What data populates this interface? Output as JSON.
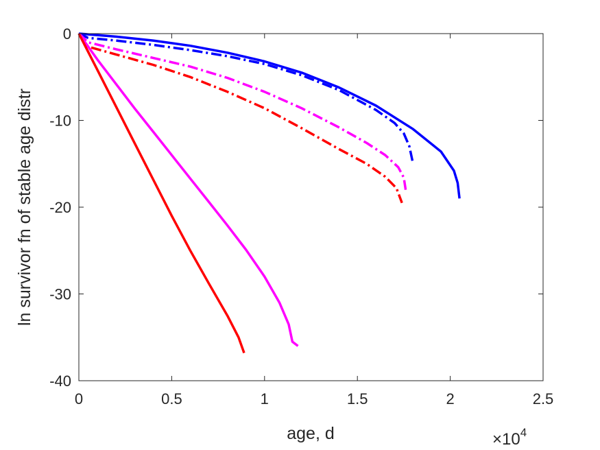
{
  "chart_data": {
    "type": "line",
    "title": "",
    "xlabel": "age, d",
    "ylabel": "ln survivor fn of stable age distr",
    "x_exponent_label": {
      "base": "×10",
      "exponent": "4"
    },
    "xlim": [
      0,
      25000
    ],
    "ylim": [
      -40,
      0
    ],
    "xticks": [
      0,
      5000,
      10000,
      15000,
      20000,
      25000
    ],
    "xtick_labels": [
      "0",
      "0.5",
      "1",
      "1.5",
      "2",
      "2.5"
    ],
    "yticks": [
      0,
      -10,
      -20,
      -30,
      -40
    ],
    "ytick_labels": [
      "0",
      "-10",
      "-20",
      "-30",
      "-40"
    ],
    "grid": false,
    "legend": "none",
    "series": [
      {
        "color": "#0000ff",
        "style": "solid",
        "x": [
          0,
          2000,
          4000,
          6000,
          8000,
          10000,
          12000,
          14000,
          16000,
          18000,
          19500,
          20200,
          20400,
          20500
        ],
        "y": [
          0,
          -0.35,
          -0.8,
          -1.4,
          -2.2,
          -3.2,
          -4.5,
          -6.2,
          -8.3,
          -11.0,
          -13.6,
          -15.8,
          -17.2,
          -19.0
        ]
      },
      {
        "color": "#0000ff",
        "style": "dashdot",
        "x": [
          0,
          500,
          2000,
          4000,
          6000,
          8000,
          10000,
          12000,
          14000,
          16000,
          17000,
          17500,
          17800,
          18000
        ],
        "y": [
          0,
          -0.5,
          -0.8,
          -1.3,
          -1.9,
          -2.6,
          -3.5,
          -4.8,
          -6.5,
          -8.8,
          -10.3,
          -11.5,
          -13.0,
          -15.0
        ]
      },
      {
        "color": "#ff00ff",
        "style": "dashdot",
        "x": [
          0,
          500,
          2000,
          4000,
          6000,
          8000,
          10000,
          12000,
          14000,
          15500,
          16500,
          17200,
          17500,
          17600
        ],
        "y": [
          0,
          -1.0,
          -1.8,
          -2.8,
          -3.8,
          -5.1,
          -6.7,
          -8.6,
          -10.8,
          -12.6,
          -14.0,
          -15.4,
          -16.6,
          -18.0
        ]
      },
      {
        "color": "#ff0000",
        "style": "dashdot",
        "x": [
          0,
          500,
          2000,
          4000,
          6000,
          8000,
          10000,
          12000,
          14000,
          15500,
          16500,
          17100,
          17400
        ],
        "y": [
          0,
          -1.5,
          -2.4,
          -3.6,
          -5.0,
          -6.7,
          -8.6,
          -10.9,
          -13.3,
          -15.0,
          -16.5,
          -17.8,
          -19.5
        ]
      },
      {
        "color": "#ff00ff",
        "style": "solid",
        "x": [
          0,
          1000,
          2000,
          3000,
          4000,
          5000,
          6000,
          7000,
          8000,
          9000,
          10000,
          10800,
          11300,
          11500,
          11800
        ],
        "y": [
          0,
          -3.0,
          -5.8,
          -8.6,
          -11.3,
          -14.0,
          -16.7,
          -19.4,
          -22.1,
          -24.9,
          -28.0,
          -31.0,
          -33.5,
          -35.5,
          -36.0
        ]
      },
      {
        "color": "#ff0000",
        "style": "solid",
        "x": [
          0,
          1000,
          2000,
          3000,
          4000,
          5000,
          6000,
          7000,
          8000,
          8600,
          8900
        ],
        "y": [
          0,
          -4.2,
          -8.4,
          -12.6,
          -16.8,
          -21.0,
          -25.0,
          -28.8,
          -32.5,
          -35.0,
          -36.8
        ]
      }
    ]
  }
}
